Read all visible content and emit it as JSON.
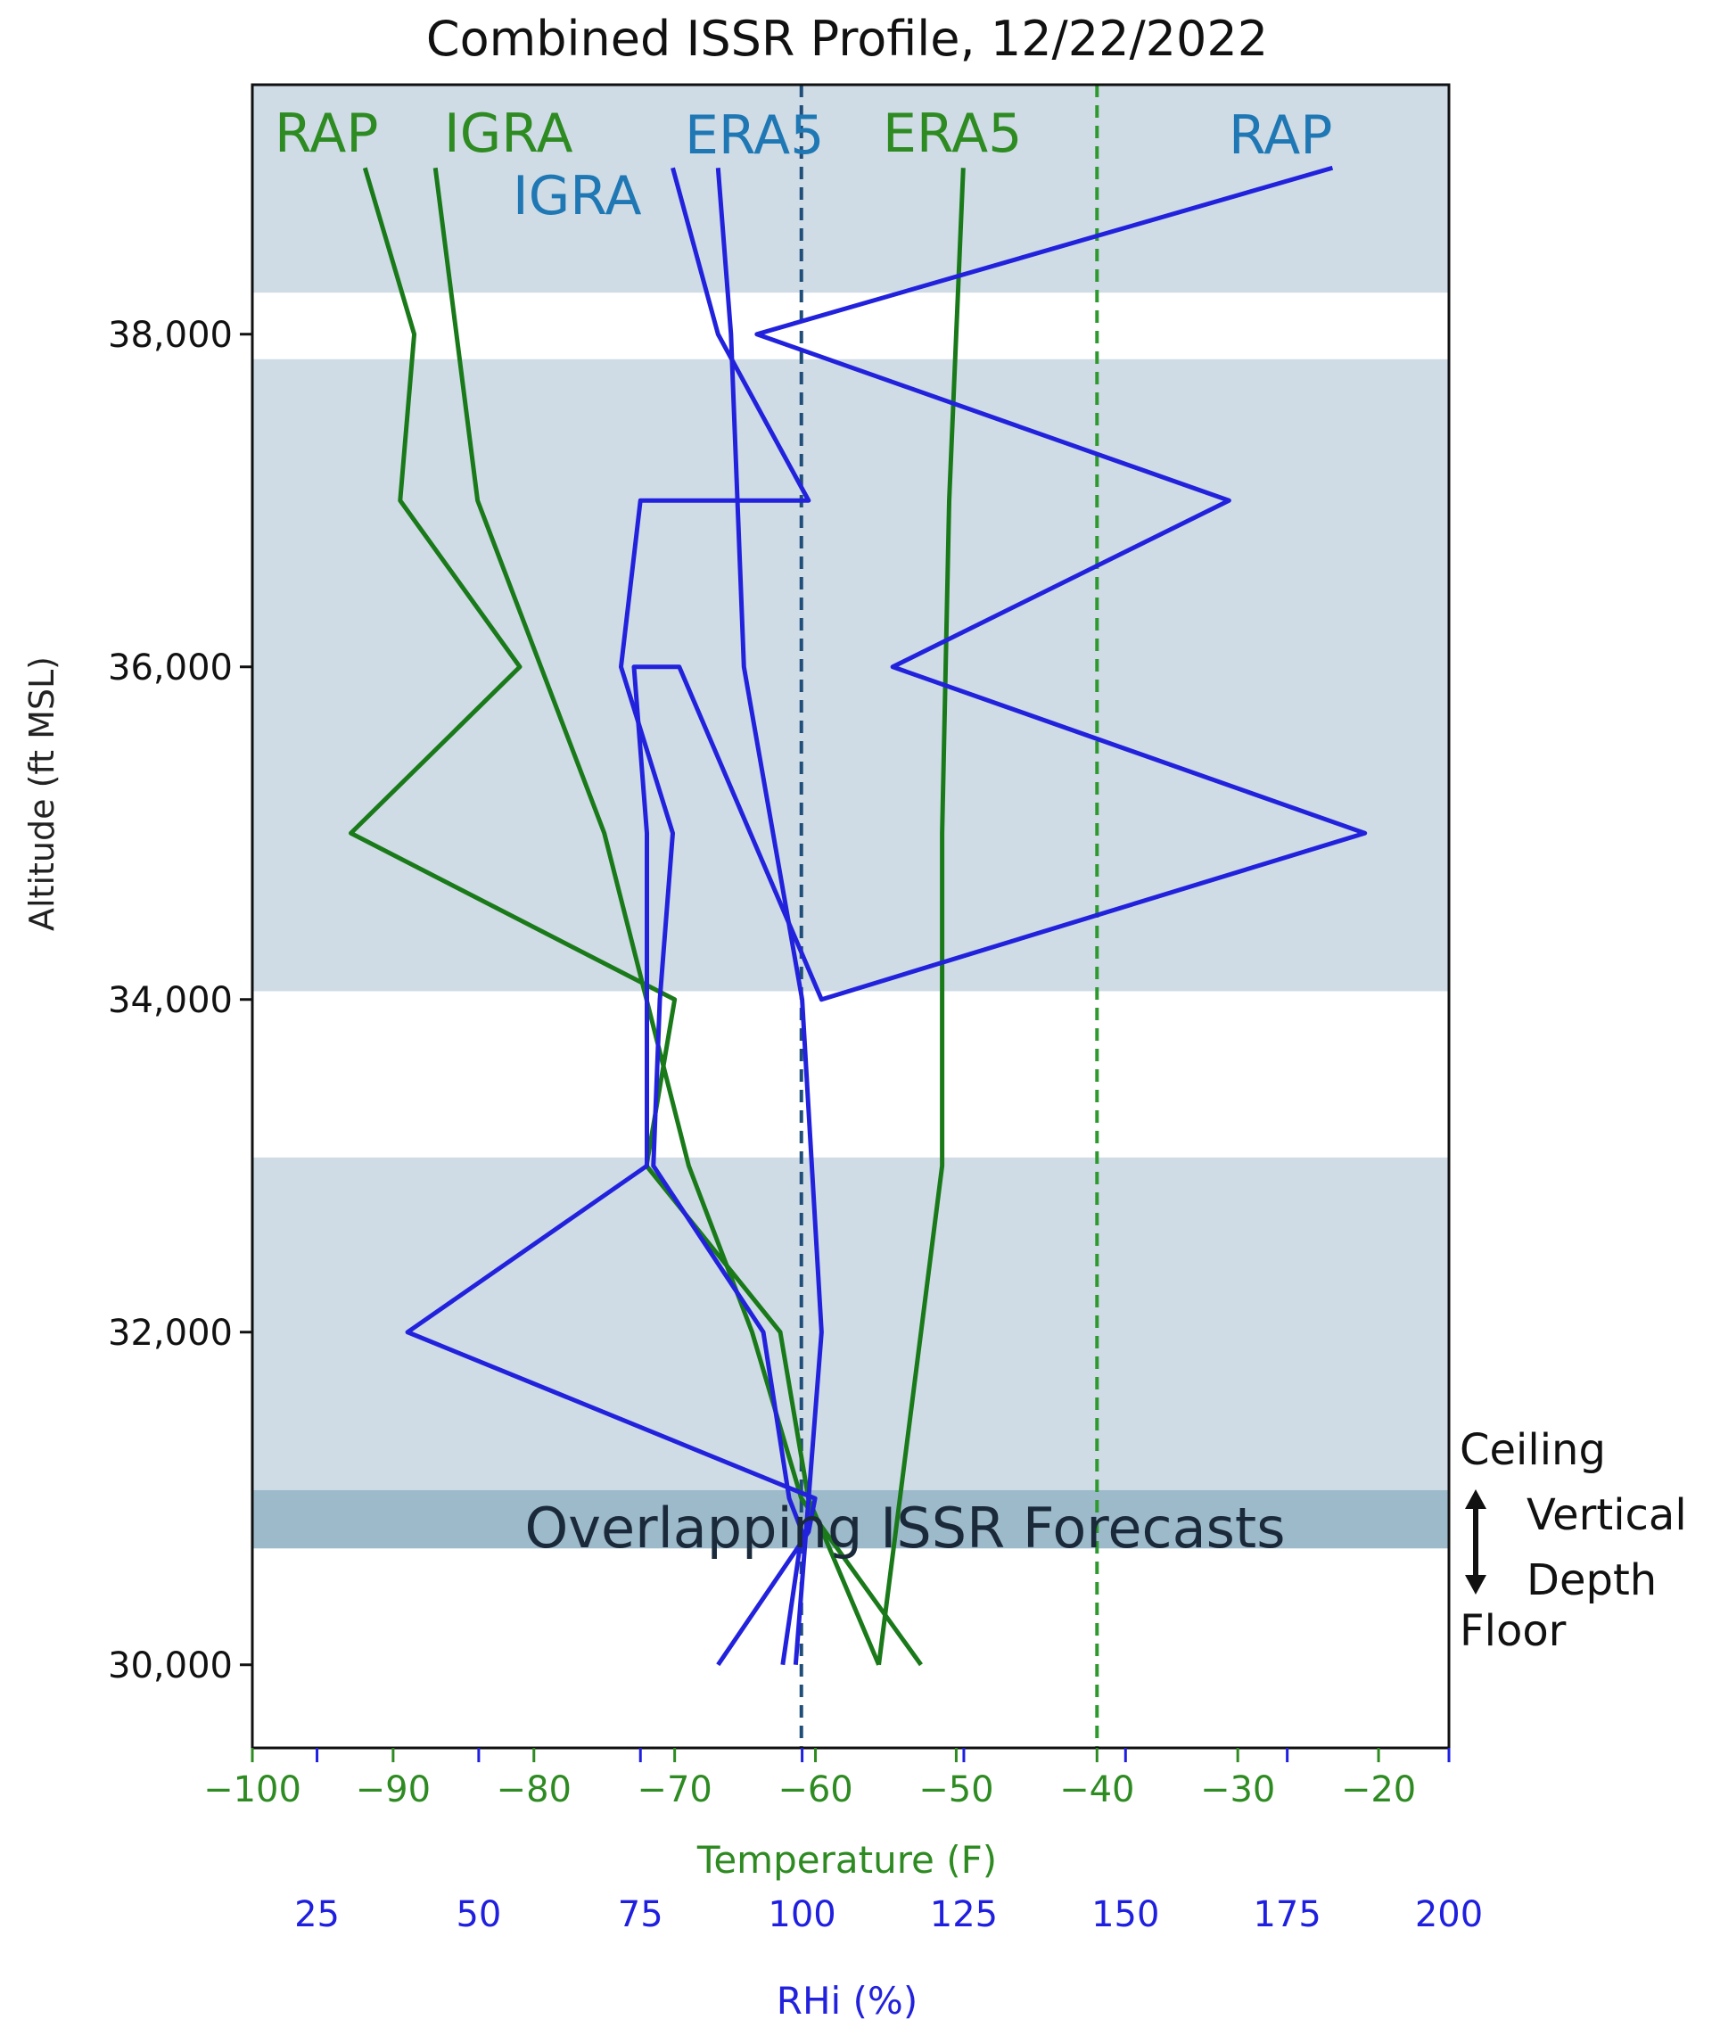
{
  "chart_data": {
    "type": "line",
    "title": "Combined ISSR Profile, 12/22/2022",
    "ylabel": "Altitude (ft MSL)",
    "ylim": [
      29500,
      39500
    ],
    "yticks": [
      30000,
      32000,
      34000,
      36000,
      38000
    ],
    "ytick_labels": [
      "30,000",
      "32,000",
      "34,000",
      "36,000",
      "38,000"
    ],
    "temperature_axis": {
      "label": "Temperature (F)",
      "range": [
        -100,
        -15
      ],
      "ticks": [
        -100,
        -90,
        -80,
        -70,
        -60,
        -50,
        -40,
        -30,
        -20
      ],
      "tick_labels": [
        "−100",
        "−90",
        "−80",
        "−70",
        "−60",
        "−50",
        "−40",
        "−30",
        "−20"
      ],
      "color": "#2e8b22"
    },
    "rhi_axis": {
      "label": "RHi (%)",
      "range": [
        15,
        200
      ],
      "ticks": [
        25,
        50,
        75,
        100,
        125,
        150,
        175,
        200
      ],
      "tick_labels": [
        "25",
        "50",
        "75",
        "100",
        "125",
        "150",
        "175",
        "200"
      ],
      "color": "#1f1fe0"
    },
    "issr_bands": [
      {
        "from": 38250,
        "to": 39500,
        "kind": "issr"
      },
      {
        "from": 34050,
        "to": 37850,
        "kind": "issr"
      },
      {
        "from": 30700,
        "to": 33050,
        "kind": "issr"
      },
      {
        "from": 30700,
        "to": 31050,
        "kind": "overlap"
      }
    ],
    "reference_lines": [
      {
        "axis": "temperature",
        "value": -61,
        "color": "#1f4e79"
      },
      {
        "axis": "temperature",
        "value": -40,
        "color": "#2e9a2e"
      }
    ],
    "temperature_series": [
      {
        "name": "RAP",
        "color": "#1a7a1a",
        "points": [
          [
            -55.5,
            30000
          ],
          [
            -60.5,
            31000
          ],
          [
            -62.5,
            32000
          ],
          [
            -72,
            33000
          ],
          [
            -70,
            34000
          ],
          [
            -93,
            35000
          ],
          [
            -81,
            36000
          ],
          [
            -89.5,
            37000
          ],
          [
            -88.5,
            38000
          ],
          [
            -92,
            39000
          ]
        ]
      },
      {
        "name": "IGRA",
        "color": "#1a7a1a",
        "points": [
          [
            -52.5,
            30000
          ],
          [
            -61,
            31000
          ],
          [
            -64.5,
            32000
          ],
          [
            -69,
            33000
          ],
          [
            -72,
            34000
          ],
          [
            -75,
            35000
          ],
          [
            -79.5,
            36000
          ],
          [
            -84,
            37000
          ],
          [
            -85.5,
            38000
          ],
          [
            -87,
            39000
          ]
        ]
      },
      {
        "name": "ERA5",
        "color": "#1a7a1a",
        "points": [
          [
            -55.5,
            30000
          ],
          [
            -51,
            33000
          ],
          [
            -51,
            35000
          ],
          [
            -50.5,
            37000
          ],
          [
            -50,
            38000
          ],
          [
            -49.5,
            39000
          ]
        ]
      }
    ],
    "rhi_series": [
      {
        "name": "IGRA",
        "color": "#2222dd",
        "points": [
          [
            97,
            30000
          ],
          [
            100,
            30800
          ],
          [
            98,
            31000
          ],
          [
            94,
            32000
          ],
          [
            77,
            33000
          ],
          [
            78,
            34000
          ],
          [
            80,
            35000
          ],
          [
            72,
            36000
          ],
          [
            75,
            37000
          ],
          [
            101,
            37000
          ],
          [
            87,
            38000
          ],
          [
            80,
            39000
          ]
        ]
      },
      {
        "name": "ERA5",
        "color": "#2222dd",
        "points": [
          [
            99,
            30000
          ],
          [
            101,
            31000
          ],
          [
            103,
            32000
          ],
          [
            100,
            34000
          ],
          [
            91,
            36000
          ],
          [
            90,
            37000
          ],
          [
            89,
            38000
          ],
          [
            87,
            39000
          ]
        ]
      },
      {
        "name": "RAP",
        "color": "#2222dd",
        "points": [
          [
            87,
            30000
          ],
          [
            101,
            30800
          ],
          [
            102,
            31000
          ],
          [
            39,
            32000
          ],
          [
            76,
            33000
          ],
          [
            76,
            35000
          ],
          [
            74,
            36000
          ],
          [
            81,
            36000
          ],
          [
            103,
            34000
          ],
          [
            187,
            35000
          ],
          [
            114,
            36000
          ],
          [
            166,
            37000
          ],
          [
            93,
            38000
          ],
          [
            182,
            39000
          ]
        ]
      }
    ],
    "series_labels": [
      {
        "text": "RAP",
        "color": "#2e8b22"
      },
      {
        "text": "IGRA",
        "color": "#2e8b22"
      },
      {
        "text": "ERA5",
        "color": "#1f78b4"
      },
      {
        "text": "IGRA",
        "color": "#1f78b4"
      },
      {
        "text": "ERA5",
        "color": "#2e8b22"
      },
      {
        "text": "RAP",
        "color": "#1f78b4"
      }
    ],
    "annotations": {
      "overlap_label": "Overlapping ISSR Forecasts",
      "ceiling": "Ceiling",
      "vertical": "Vertical",
      "depth": "Depth",
      "floor": "Floor"
    }
  }
}
